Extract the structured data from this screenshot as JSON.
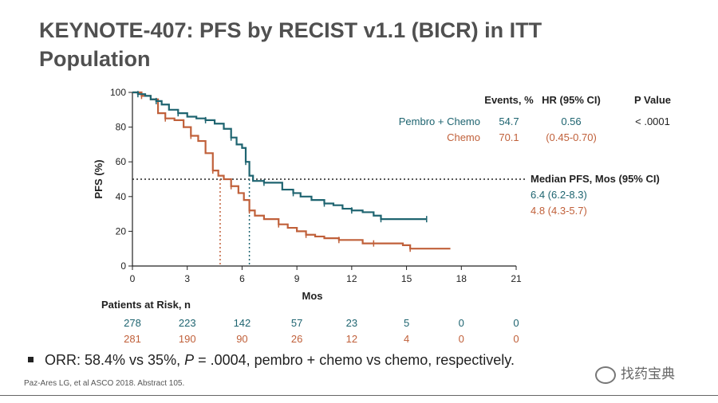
{
  "title": "KEYNOTE-407: PFS by RECIST v1.1 (BICR) in ITT Population",
  "chart_data": {
    "type": "line",
    "title": "KEYNOTE-407: PFS by RECIST v1.1 (BICR) in ITT Population",
    "xlabel": "Mos",
    "ylabel": "PFS (%)",
    "xlim": [
      0,
      21
    ],
    "ylim": [
      0,
      100
    ],
    "x_ticks": [
      0,
      3,
      6,
      9,
      12,
      15,
      18,
      21
    ],
    "y_ticks": [
      0,
      20,
      40,
      60,
      80,
      100
    ],
    "median_line_y": 50,
    "series": [
      {
        "name": "Pembro + Chemo",
        "color": "#1e6470",
        "median": 6.4,
        "points": [
          [
            0,
            100
          ],
          [
            0.3,
            99
          ],
          [
            0.7,
            98
          ],
          [
            1.0,
            96
          ],
          [
            1.3,
            95
          ],
          [
            1.6,
            93
          ],
          [
            2.0,
            90
          ],
          [
            2.5,
            88
          ],
          [
            3.0,
            86
          ],
          [
            3.5,
            85
          ],
          [
            4.0,
            84
          ],
          [
            4.5,
            82
          ],
          [
            5.0,
            79
          ],
          [
            5.4,
            74
          ],
          [
            5.7,
            70
          ],
          [
            6.0,
            68
          ],
          [
            6.2,
            60
          ],
          [
            6.4,
            52
          ],
          [
            6.6,
            49
          ],
          [
            7.2,
            48
          ],
          [
            7.8,
            48
          ],
          [
            8.2,
            44
          ],
          [
            8.8,
            42
          ],
          [
            9.2,
            40
          ],
          [
            9.8,
            38
          ],
          [
            10.5,
            36
          ],
          [
            11.0,
            35
          ],
          [
            11.5,
            33
          ],
          [
            12.0,
            32
          ],
          [
            12.6,
            31
          ],
          [
            13.2,
            29
          ],
          [
            13.6,
            27
          ],
          [
            14.0,
            27
          ],
          [
            15.0,
            27
          ],
          [
            16.1,
            27
          ]
        ]
      },
      {
        "name": "Chemo",
        "color": "#c0603a",
        "median": 4.8,
        "points": [
          [
            0,
            100
          ],
          [
            0.5,
            98
          ],
          [
            1.0,
            96
          ],
          [
            1.4,
            88
          ],
          [
            1.8,
            85
          ],
          [
            2.3,
            84
          ],
          [
            2.8,
            80
          ],
          [
            3.2,
            75
          ],
          [
            3.6,
            72
          ],
          [
            4.0,
            65
          ],
          [
            4.4,
            55
          ],
          [
            4.7,
            52
          ],
          [
            5.0,
            50
          ],
          [
            5.4,
            46
          ],
          [
            5.8,
            42
          ],
          [
            6.1,
            38
          ],
          [
            6.4,
            32
          ],
          [
            6.7,
            29
          ],
          [
            7.2,
            27
          ],
          [
            8.0,
            24
          ],
          [
            8.5,
            22
          ],
          [
            9.0,
            20
          ],
          [
            9.5,
            18
          ],
          [
            10.0,
            17
          ],
          [
            10.5,
            16
          ],
          [
            11.3,
            15
          ],
          [
            12.0,
            15
          ],
          [
            12.6,
            13
          ],
          [
            13.2,
            13
          ],
          [
            14.0,
            13
          ],
          [
            14.8,
            12
          ],
          [
            15.2,
            10
          ],
          [
            16.5,
            10
          ],
          [
            17.4,
            10
          ]
        ]
      }
    ],
    "stats_table": {
      "headers": [
        "Events, %",
        "HR (95% CI)",
        "P Value"
      ],
      "rows": [
        {
          "label": "Pembro + Chemo",
          "events": "54.7",
          "hr": "0.56",
          "p": "< .0001"
        },
        {
          "label": "Chemo",
          "events": "70.1",
          "hr": "(0.45-0.70)",
          "p": ""
        }
      ]
    },
    "median_pfs": {
      "header": "Median PFS, Mos (95% CI)",
      "pembro": "6.4 (6.2-8.3)",
      "chemo": "4.8 (4.3-5.7)"
    },
    "at_risk": {
      "title": "Patients at Risk, n",
      "pembro": [
        "278",
        "223",
        "142",
        "57",
        "23",
        "5",
        "0",
        "0"
      ],
      "chemo": [
        "281",
        "190",
        "90",
        "26",
        "12",
        "4",
        "0",
        "0"
      ]
    }
  },
  "bullet": {
    "pre": "ORR: 58.4% vs 35%, ",
    "p_italic": "P",
    "post": " = .0004, pembro + chemo vs chemo, respectively."
  },
  "citation": "Paz-Ares LG, et al ASCO 2018. Abstract 105.",
  "watermark": "找药宝典"
}
